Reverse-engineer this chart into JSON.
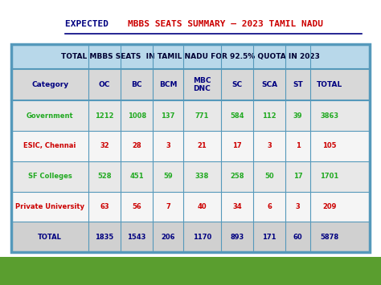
{
  "title_part1": "EXPECTED ",
  "title_part2": "MBBS SEATS SUMMARY – 2023 TAMIL NADU",
  "table_header": "TOTAL MBBS SEATS  IN TAMIL NADU FOR 92.5% QUOTA IN 2023",
  "columns": [
    "Category",
    "OC",
    "BC",
    "BCM",
    "MBC\nDNC",
    "SC",
    "SCA",
    "ST",
    "TOTAL"
  ],
  "rows": [
    [
      "Government",
      "1212",
      "1008",
      "137",
      "771",
      "584",
      "112",
      "39",
      "3863"
    ],
    [
      "ESIC, Chennai",
      "32",
      "28",
      "3",
      "21",
      "17",
      "3",
      "1",
      "105"
    ],
    [
      "SF Colleges",
      "528",
      "451",
      "59",
      "338",
      "258",
      "50",
      "17",
      "1701"
    ],
    [
      "Private University",
      "63",
      "56",
      "7",
      "40",
      "34",
      "6",
      "3",
      "209"
    ],
    [
      "TOTAL",
      "1835",
      "1543",
      "206",
      "1170",
      "893",
      "171",
      "60",
      "5878"
    ]
  ],
  "row_category_colors": [
    "#22aa22",
    "#cc0000",
    "#22aa22",
    "#cc0000",
    "#000080"
  ],
  "row_data_colors": [
    "#22aa22",
    "#cc0000",
    "#22aa22",
    "#cc0000",
    "#000080"
  ],
  "bg_color": "#ffffff",
  "outer_bg": "#c8c8c8",
  "header_bg": "#b8d8ea",
  "col_header_bg": "#d8d8d8",
  "row_bg_even": "#e8e8e8",
  "row_bg_odd": "#f5f5f5",
  "total_row_bg": "#d0d0d0",
  "table_border_color": "#5599bb",
  "title_color1": "#000080",
  "title_color2": "#cc0000",
  "bottom_bar_color": "#5a9e2f",
  "col_header_color": "#000080"
}
